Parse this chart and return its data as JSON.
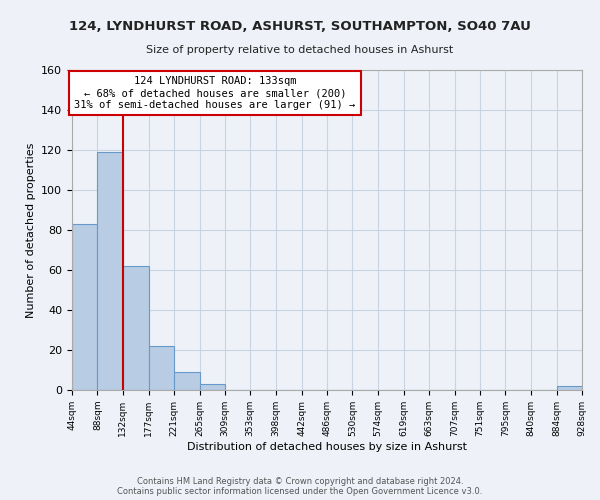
{
  "title": "124, LYNDHURST ROAD, ASHURST, SOUTHAMPTON, SO40 7AU",
  "subtitle": "Size of property relative to detached houses in Ashurst",
  "xlabel": "Distribution of detached houses by size in Ashurst",
  "ylabel": "Number of detached properties",
  "bin_edges": [
    44,
    88,
    132,
    177,
    221,
    265,
    309,
    353,
    398,
    442,
    486,
    530,
    574,
    619,
    663,
    707,
    751,
    795,
    840,
    884,
    928
  ],
  "bin_counts": [
    83,
    119,
    62,
    22,
    9,
    3,
    0,
    0,
    0,
    0,
    0,
    0,
    0,
    0,
    0,
    0,
    0,
    0,
    0,
    2
  ],
  "bar_color": "#b8cce4",
  "bar_edge_color": "#6699cc",
  "red_line_x": 132,
  "annotation_line1": "124 LYNDHURST ROAD: 133sqm",
  "annotation_line2": "← 68% of detached houses are smaller (200)",
  "annotation_line3": "31% of semi-detached houses are larger (91) →",
  "annotation_box_color": "#ffffff",
  "annotation_border_color": "#cc0000",
  "red_line_color": "#cc0000",
  "ylim": [
    0,
    160
  ],
  "yticks": [
    0,
    20,
    40,
    60,
    80,
    100,
    120,
    140,
    160
  ],
  "tick_labels": [
    "44sqm",
    "88sqm",
    "132sqm",
    "177sqm",
    "221sqm",
    "265sqm",
    "309sqm",
    "353sqm",
    "398sqm",
    "442sqm",
    "486sqm",
    "530sqm",
    "574sqm",
    "619sqm",
    "663sqm",
    "707sqm",
    "751sqm",
    "795sqm",
    "840sqm",
    "884sqm",
    "928sqm"
  ],
  "footer_line1": "Contains HM Land Registry data © Crown copyright and database right 2024.",
  "footer_line2": "Contains public sector information licensed under the Open Government Licence v3.0.",
  "background_color": "#eef2f8",
  "grid_color": "#c8d4e4",
  "title_fontsize": 9.5,
  "subtitle_fontsize": 8,
  "ylabel_fontsize": 8,
  "xlabel_fontsize": 8,
  "ytick_fontsize": 8,
  "xtick_fontsize": 6.5,
  "footer_fontsize": 6,
  "annotation_fontsize": 7.5
}
